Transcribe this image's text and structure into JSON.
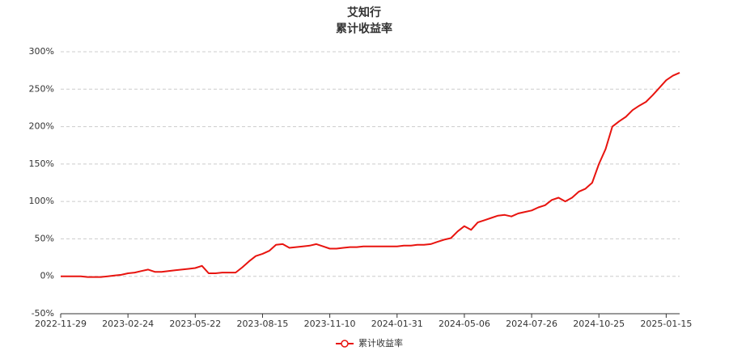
{
  "chart_data": {
    "type": "line",
    "title": "艾知行",
    "subtitle": "累计收益率",
    "categories": [
      "2022-11-29",
      null,
      null,
      null,
      null,
      null,
      null,
      null,
      null,
      null,
      "2023-02-24",
      null,
      null,
      null,
      null,
      null,
      null,
      null,
      null,
      null,
      "2023-05-22",
      null,
      null,
      null,
      null,
      null,
      null,
      null,
      null,
      null,
      "2023-08-15",
      null,
      null,
      null,
      null,
      null,
      null,
      null,
      null,
      null,
      "2023-11-10",
      null,
      null,
      null,
      null,
      null,
      null,
      null,
      null,
      null,
      "2024-01-31",
      null,
      null,
      null,
      null,
      null,
      null,
      null,
      null,
      null,
      "2024-05-06",
      null,
      null,
      null,
      null,
      null,
      null,
      null,
      null,
      null,
      "2024-07-26",
      null,
      null,
      null,
      null,
      null,
      null,
      null,
      null,
      null,
      "2024-10-25",
      null,
      null,
      null,
      null,
      null,
      null,
      null,
      null,
      null,
      "2025-01-15",
      null,
      null
    ],
    "series": [
      {
        "name": "累计收益率",
        "color": "#e8140f",
        "values": [
          0,
          0,
          0,
          0,
          -1,
          -1,
          -1,
          0,
          1,
          2,
          4,
          5,
          7,
          9,
          6,
          6,
          7,
          8,
          9,
          10,
          11,
          14,
          4,
          4,
          5,
          5,
          5,
          12,
          20,
          27,
          30,
          34,
          42,
          43,
          38,
          39,
          40,
          41,
          43,
          40,
          37,
          37,
          38,
          39,
          39,
          40,
          40,
          40,
          40,
          40,
          40,
          41,
          41,
          42,
          42,
          43,
          46,
          49,
          51,
          60,
          67,
          62,
          72,
          75,
          78,
          81,
          82,
          80,
          84,
          86,
          88,
          92,
          95,
          102,
          105,
          100,
          105,
          113,
          117,
          125,
          150,
          170,
          200,
          207,
          213,
          222,
          228,
          233,
          242,
          252,
          262,
          268,
          272
        ]
      }
    ],
    "ylim": [
      -50,
      300
    ],
    "yticks": [
      {
        "value": -50,
        "label": "-50%"
      },
      {
        "value": 0,
        "label": "0%"
      },
      {
        "value": 50,
        "label": "50%"
      },
      {
        "value": 100,
        "label": "100%"
      },
      {
        "value": 150,
        "label": "150%"
      },
      {
        "value": 200,
        "label": "200%"
      },
      {
        "value": 250,
        "label": "250%"
      },
      {
        "value": 300,
        "label": "300%"
      }
    ],
    "grid": true
  }
}
